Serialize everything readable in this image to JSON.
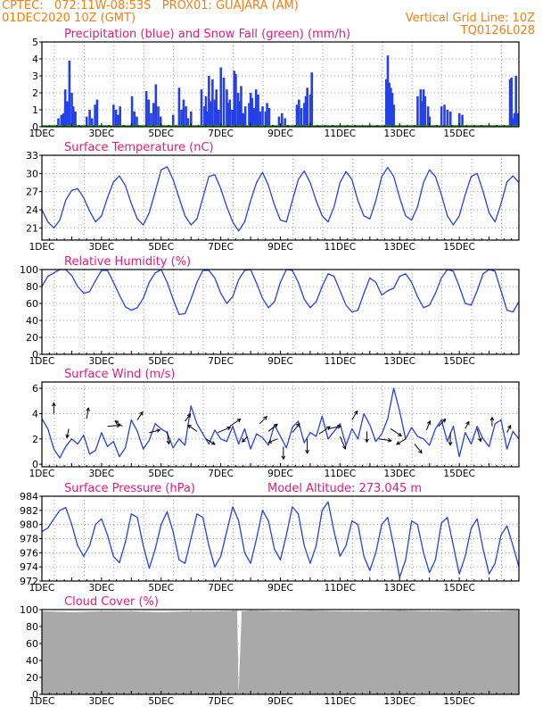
{
  "header": {
    "line1_left": "CPTEC:   072:11W-08:53S   PROX01: GUAJARA (AM)",
    "line2_left": "01DEC2020 10Z (GMT)",
    "line2_right": "Vertical Grid Line: 10Z",
    "line3_right": "TQ0126L028"
  },
  "colors": {
    "header": "#f07f14",
    "panel_title": "#e6197d",
    "series": "#2541e6",
    "snow": "#1aa31a",
    "wind_arrow": "#000000",
    "cloud_fill": "#a9a9a9",
    "grid": "#9a9a9a"
  },
  "chart_data": [
    {
      "type": "bar",
      "title": "Precipitation (blue) and Snow Fall (green) (mm/h)",
      "x_tick_labels": [
        "1DEC",
        "3DEC",
        "5DEC",
        "7DEC",
        "9DEC",
        "11DEC",
        "13DEC",
        "15DEC"
      ],
      "y_ticks": [
        0,
        1,
        2,
        3,
        4,
        5
      ],
      "ylim": [
        0,
        5
      ],
      "grid": true,
      "series": [
        {
          "name": "Precipitation",
          "color": "blue",
          "x_days": [
            0.55,
            0.65,
            0.72,
            0.78,
            0.85,
            0.92,
            1.0,
            1.05,
            1.12,
            1.5,
            1.6,
            1.68,
            1.78,
            1.85,
            2.4,
            2.48,
            2.55,
            2.62,
            3.02,
            3.1,
            3.18,
            3.5,
            3.58,
            3.66,
            3.74,
            3.82,
            3.9,
            3.98,
            4.4,
            4.6,
            4.68,
            4.75,
            4.83,
            4.9,
            5.0,
            5.35,
            5.45,
            5.5,
            5.55,
            5.6,
            5.65,
            5.72,
            5.8,
            5.85,
            5.92,
            6.0,
            6.1,
            6.2,
            6.25,
            6.3,
            6.38,
            6.45,
            6.5,
            6.58,
            6.62,
            6.68,
            6.75,
            6.82,
            6.95,
            7.0,
            7.05,
            7.12,
            7.18,
            7.25,
            7.32,
            7.4,
            7.5,
            7.55,
            7.62,
            7.95,
            8.05,
            8.15,
            8.55,
            8.62,
            8.7,
            8.8,
            8.85,
            8.9,
            9.0,
            9.05,
            11.55,
            11.6,
            11.65,
            11.7,
            11.75,
            11.8,
            12.6,
            12.7,
            12.75,
            12.8,
            12.85,
            12.95,
            13.0,
            13.4,
            13.5,
            13.6,
            13.7,
            14.0,
            14.1,
            15.7,
            15.75,
            15.8,
            15.85,
            15.9,
            15.95
          ],
          "values": [
            0.5,
            0.7,
            0.8,
            2.2,
            1.5,
            3.9,
            2.0,
            1.2,
            0.9,
            0.6,
            1.0,
            0.5,
            1.3,
            1.6,
            1.3,
            1.0,
            0.7,
            1.2,
            1.8,
            0.9,
            0.6,
            2.1,
            1.6,
            0.8,
            1.4,
            2.5,
            1.2,
            0.6,
            0.7,
            2.3,
            1.0,
            1.6,
            1.2,
            0.5,
            0.9,
            2.2,
            1.2,
            1.8,
            0.9,
            3.0,
            1.5,
            2.8,
            1.6,
            2.2,
            1.0,
            3.5,
            2.9,
            2.2,
            1.4,
            1.6,
            1.0,
            3.3,
            3.1,
            2.0,
            1.5,
            2.4,
            0.8,
            1.2,
            1.4,
            2.0,
            1.7,
            1.1,
            2.2,
            1.9,
            0.9,
            1.2,
            0.9,
            1.4,
            1.1,
            0.6,
            0.8,
            0.5,
            1.3,
            1.6,
            1.1,
            1.4,
            1.8,
            2.3,
            1.9,
            3.2,
            2.8,
            4.2,
            2.6,
            2.3,
            2.0,
            1.3,
            1.8,
            2.2,
            1.5,
            2.2,
            1.8,
            1.2,
            0.6,
            1.2,
            1.3,
            1.0,
            0.9,
            0.8,
            0.7,
            2.8,
            2.9,
            0.5,
            0.8,
            3.0,
            0.8
          ]
        },
        {
          "name": "Snow Fall",
          "color": "green",
          "values": [
            0
          ]
        }
      ]
    },
    {
      "type": "line",
      "title": "Surface Temperature (nC)",
      "x_tick_labels": [
        "1DEC",
        "3DEC",
        "5DEC",
        "7DEC",
        "9DEC",
        "11DEC",
        "13DEC",
        "15DEC"
      ],
      "y_ticks": [
        21,
        24,
        27,
        30,
        33
      ],
      "ylim": [
        19,
        33
      ],
      "grid": true,
      "x_days": [
        0,
        0.2,
        0.4,
        0.6,
        0.8,
        1.0,
        1.2,
        1.4,
        1.6,
        1.8,
        2.0,
        2.2,
        2.4,
        2.6,
        2.8,
        3.0,
        3.2,
        3.4,
        3.6,
        3.8,
        4.0,
        4.2,
        4.4,
        4.6,
        4.8,
        5.0,
        5.2,
        5.4,
        5.6,
        5.8,
        6.0,
        6.2,
        6.4,
        6.6,
        6.8,
        7.0,
        7.2,
        7.4,
        7.6,
        7.8,
        8.0,
        8.2,
        8.4,
        8.6,
        8.8,
        9.0,
        9.2,
        9.4,
        9.6,
        9.8,
        10.0,
        10.2,
        10.4,
        10.6,
        10.8,
        11.0,
        11.2,
        11.4,
        11.6,
        11.8,
        12.0,
        12.2,
        12.4,
        12.6,
        12.8,
        13.0,
        13.2,
        13.4,
        13.6,
        13.8,
        14.0,
        14.2,
        14.4,
        14.6,
        14.8,
        15.0,
        15.2,
        15.4,
        15.6,
        15.8,
        16.0
      ],
      "values": [
        24.0,
        22.0,
        21.0,
        22.3,
        25.6,
        27.2,
        27.5,
        26.0,
        23.8,
        22.0,
        23.0,
        26.0,
        28.6,
        29.6,
        28.0,
        25.0,
        22.5,
        21.5,
        23.5,
        27.0,
        30.6,
        31.1,
        29.0,
        26.0,
        23.0,
        21.5,
        22.5,
        26.0,
        29.5,
        29.8,
        27.5,
        24.5,
        22.0,
        20.5,
        22.0,
        25.5,
        28.5,
        30.2,
        28.0,
        24.8,
        22.3,
        22.0,
        25.5,
        29.0,
        30.4,
        28.5,
        25.5,
        23.0,
        22.0,
        24.5,
        28.5,
        30.3,
        29.0,
        25.5,
        23.0,
        22.5,
        25.5,
        29.5,
        31.0,
        29.5,
        26.0,
        23.0,
        22.3,
        24.5,
        28.5,
        30.6,
        29.5,
        26.5,
        23.0,
        21.5,
        23.0,
        26.5,
        29.5,
        30.0,
        27.0,
        23.5,
        22.0,
        25.0,
        28.6,
        29.6,
        28.5
      ]
    },
    {
      "type": "line",
      "title": "Relative Humidity (%)",
      "x_tick_labels": [
        "1DEC",
        "3DEC",
        "5DEC",
        "7DEC",
        "9DEC",
        "11DEC",
        "13DEC",
        "15DEC"
      ],
      "y_ticks": [
        0,
        20,
        40,
        60,
        80,
        100
      ],
      "ylim": [
        0,
        100
      ],
      "grid": true,
      "x_days": [
        0,
        0.2,
        0.4,
        0.6,
        0.8,
        1.0,
        1.2,
        1.4,
        1.6,
        1.8,
        2.0,
        2.2,
        2.4,
        2.6,
        2.8,
        3.0,
        3.2,
        3.4,
        3.6,
        3.8,
        4.0,
        4.2,
        4.4,
        4.6,
        4.8,
        5.0,
        5.2,
        5.4,
        5.6,
        5.8,
        6.0,
        6.2,
        6.4,
        6.6,
        6.8,
        7.0,
        7.2,
        7.4,
        7.6,
        7.8,
        8.0,
        8.2,
        8.4,
        8.6,
        8.8,
        9.0,
        9.2,
        9.4,
        9.6,
        9.8,
        10.0,
        10.2,
        10.4,
        10.6,
        10.8,
        11.0,
        11.2,
        11.4,
        11.6,
        11.8,
        12.0,
        12.2,
        12.4,
        12.6,
        12.8,
        13.0,
        13.2,
        13.4,
        13.6,
        13.8,
        14.0,
        14.2,
        14.4,
        14.6,
        14.8,
        15.0,
        15.2,
        15.4,
        15.6,
        15.8,
        16.0
      ],
      "values": [
        80,
        92,
        96,
        100,
        100,
        93,
        80,
        72,
        74,
        87,
        99,
        99,
        85,
        70,
        56,
        52,
        55,
        66,
        85,
        96,
        100,
        85,
        65,
        47,
        48,
        65,
        85,
        99,
        99,
        90,
        72,
        60,
        68,
        88,
        99,
        100,
        84,
        66,
        55,
        62,
        85,
        100,
        99,
        85,
        65,
        55,
        62,
        80,
        95,
        92,
        75,
        58,
        50,
        52,
        72,
        90,
        85,
        70,
        75,
        78,
        92,
        95,
        85,
        68,
        55,
        58,
        72,
        90,
        100,
        98,
        80,
        60,
        58,
        75,
        95,
        100,
        98,
        75,
        52,
        50,
        62
      ]
    },
    {
      "type": "line",
      "title": "Surface Wind (m/s)",
      "x_tick_labels": [
        "1DEC",
        "3DEC",
        "5DEC",
        "7DEC",
        "9DEC",
        "11DEC",
        "13DEC",
        "15DEC"
      ],
      "y_ticks": [
        0,
        2,
        4,
        6
      ],
      "ylim": [
        -0.2,
        6.5
      ],
      "grid": true,
      "x_days": [
        0,
        0.2,
        0.4,
        0.6,
        0.8,
        1.0,
        1.2,
        1.4,
        1.6,
        1.8,
        2.0,
        2.2,
        2.4,
        2.6,
        2.8,
        3.0,
        3.2,
        3.4,
        3.6,
        3.8,
        4.0,
        4.2,
        4.4,
        4.6,
        4.8,
        5.0,
        5.2,
        5.4,
        5.6,
        5.8,
        6.0,
        6.2,
        6.4,
        6.6,
        6.8,
        7.0,
        7.2,
        7.4,
        7.6,
        7.8,
        8.0,
        8.2,
        8.4,
        8.6,
        8.8,
        9.0,
        9.2,
        9.4,
        9.6,
        9.8,
        10.0,
        10.2,
        10.4,
        10.6,
        10.8,
        11.0,
        11.2,
        11.4,
        11.6,
        11.8,
        12.0,
        12.2,
        12.4,
        12.6,
        12.8,
        13.0,
        13.2,
        13.4,
        13.6,
        13.8,
        14.0,
        14.2,
        14.4,
        14.6,
        14.8,
        15.0,
        15.2,
        15.4,
        15.6,
        15.8,
        16.0
      ],
      "values": [
        3.6,
        2.8,
        1.2,
        0.5,
        1.4,
        2.0,
        1.6,
        2.3,
        0.8,
        1.1,
        2.5,
        1.4,
        1.8,
        0.6,
        1.3,
        3.5,
        2.6,
        1.2,
        1.9,
        3.2,
        2.8,
        2.5,
        1.3,
        2.0,
        1.5,
        4.6,
        3.2,
        2.4,
        1.6,
        2.7,
        2.0,
        1.8,
        3.0,
        1.6,
        2.8,
        1.2,
        2.4,
        2.1,
        1.5,
        3.1,
        2.2,
        1.3,
        2.9,
        3.4,
        1.7,
        2.5,
        2.2,
        3.8,
        2.0,
        2.6,
        3.2,
        1.5,
        2.8,
        2.0,
        4.0,
        3.1,
        1.8,
        2.4,
        3.6,
        6.0,
        4.2,
        2.0,
        2.9,
        2.2,
        2.0,
        1.5,
        2.8,
        3.5,
        1.8,
        3.0,
        0.6,
        2.5,
        1.6,
        3.0,
        2.0,
        1.4,
        3.2,
        3.5,
        1.2,
        2.6,
        2.0
      ]
    },
    {
      "type": "line",
      "title": "Surface Pressure (hPa)",
      "annotation": "Model Altitude: 273.045  m",
      "x_tick_labels": [
        "1DEC",
        "3DEC",
        "5DEC",
        "7DEC",
        "9DEC",
        "11DEC",
        "13DEC",
        "15DEC"
      ],
      "y_ticks": [
        972,
        974,
        976,
        978,
        980,
        982,
        984
      ],
      "ylim": [
        972,
        984
      ],
      "grid": true,
      "x_days": [
        0,
        0.2,
        0.4,
        0.6,
        0.8,
        1.0,
        1.2,
        1.4,
        1.6,
        1.8,
        2.0,
        2.2,
        2.4,
        2.6,
        2.8,
        3.0,
        3.2,
        3.4,
        3.6,
        3.8,
        4.0,
        4.2,
        4.4,
        4.6,
        4.8,
        5.0,
        5.2,
        5.4,
        5.6,
        5.8,
        6.0,
        6.2,
        6.4,
        6.6,
        6.8,
        7.0,
        7.2,
        7.4,
        7.6,
        7.8,
        8.0,
        8.2,
        8.4,
        8.6,
        8.8,
        9.0,
        9.2,
        9.4,
        9.6,
        9.8,
        10.0,
        10.2,
        10.4,
        10.6,
        10.8,
        11.0,
        11.2,
        11.4,
        11.6,
        11.8,
        12.0,
        12.2,
        12.4,
        12.6,
        12.8,
        13.0,
        13.2,
        13.4,
        13.6,
        13.8,
        14.0,
        14.2,
        14.4,
        14.6,
        14.8,
        15.0,
        15.2,
        15.4,
        15.6,
        15.8,
        16.0
      ],
      "values": [
        979.0,
        979.5,
        980.8,
        982.0,
        982.4,
        980.0,
        977.0,
        975.5,
        977.0,
        980.0,
        980.8,
        978.5,
        975.5,
        974.6,
        977.5,
        981.5,
        981.0,
        977.0,
        973.8,
        976.5,
        980.0,
        981.8,
        979.0,
        975.0,
        974.5,
        978.0,
        981.5,
        981.0,
        977.0,
        974.0,
        975.5,
        979.0,
        982.5,
        980.5,
        976.0,
        974.5,
        978.0,
        982.0,
        980.5,
        976.5,
        975.0,
        978.5,
        982.5,
        981.5,
        977.0,
        974.5,
        977.0,
        982.0,
        983.2,
        979.0,
        975.5,
        977.0,
        980.5,
        980.0,
        975.5,
        973.5,
        976.0,
        980.0,
        981.0,
        977.0,
        972.5,
        975.0,
        980.5,
        980.0,
        976.0,
        973.2,
        975.0,
        980.2,
        981.0,
        977.0,
        973.0,
        975.5,
        979.5,
        980.8,
        976.5,
        973.0,
        974.5,
        978.5,
        979.8,
        977.0,
        974.0
      ]
    },
    {
      "type": "area",
      "title": "Cloud Cover (%)",
      "x_tick_labels": [
        "1DEC",
        "3DEC",
        "5DEC",
        "7DEC",
        "9DEC",
        "11DEC",
        "13DEC",
        "15DEC"
      ],
      "y_ticks": [
        0,
        20,
        40,
        60,
        80,
        100
      ],
      "ylim": [
        0,
        100
      ],
      "grid": true,
      "x_days": [
        0,
        1,
        2,
        3,
        4,
        5,
        6,
        6.55,
        6.6,
        6.7,
        7,
        8,
        9,
        10,
        11,
        12,
        13,
        14,
        15,
        16
      ],
      "values": [
        98,
        97,
        98,
        98,
        97,
        98,
        98,
        99,
        0,
        98,
        99,
        98,
        99,
        98,
        98,
        99,
        98,
        99,
        98,
        99
      ]
    }
  ]
}
